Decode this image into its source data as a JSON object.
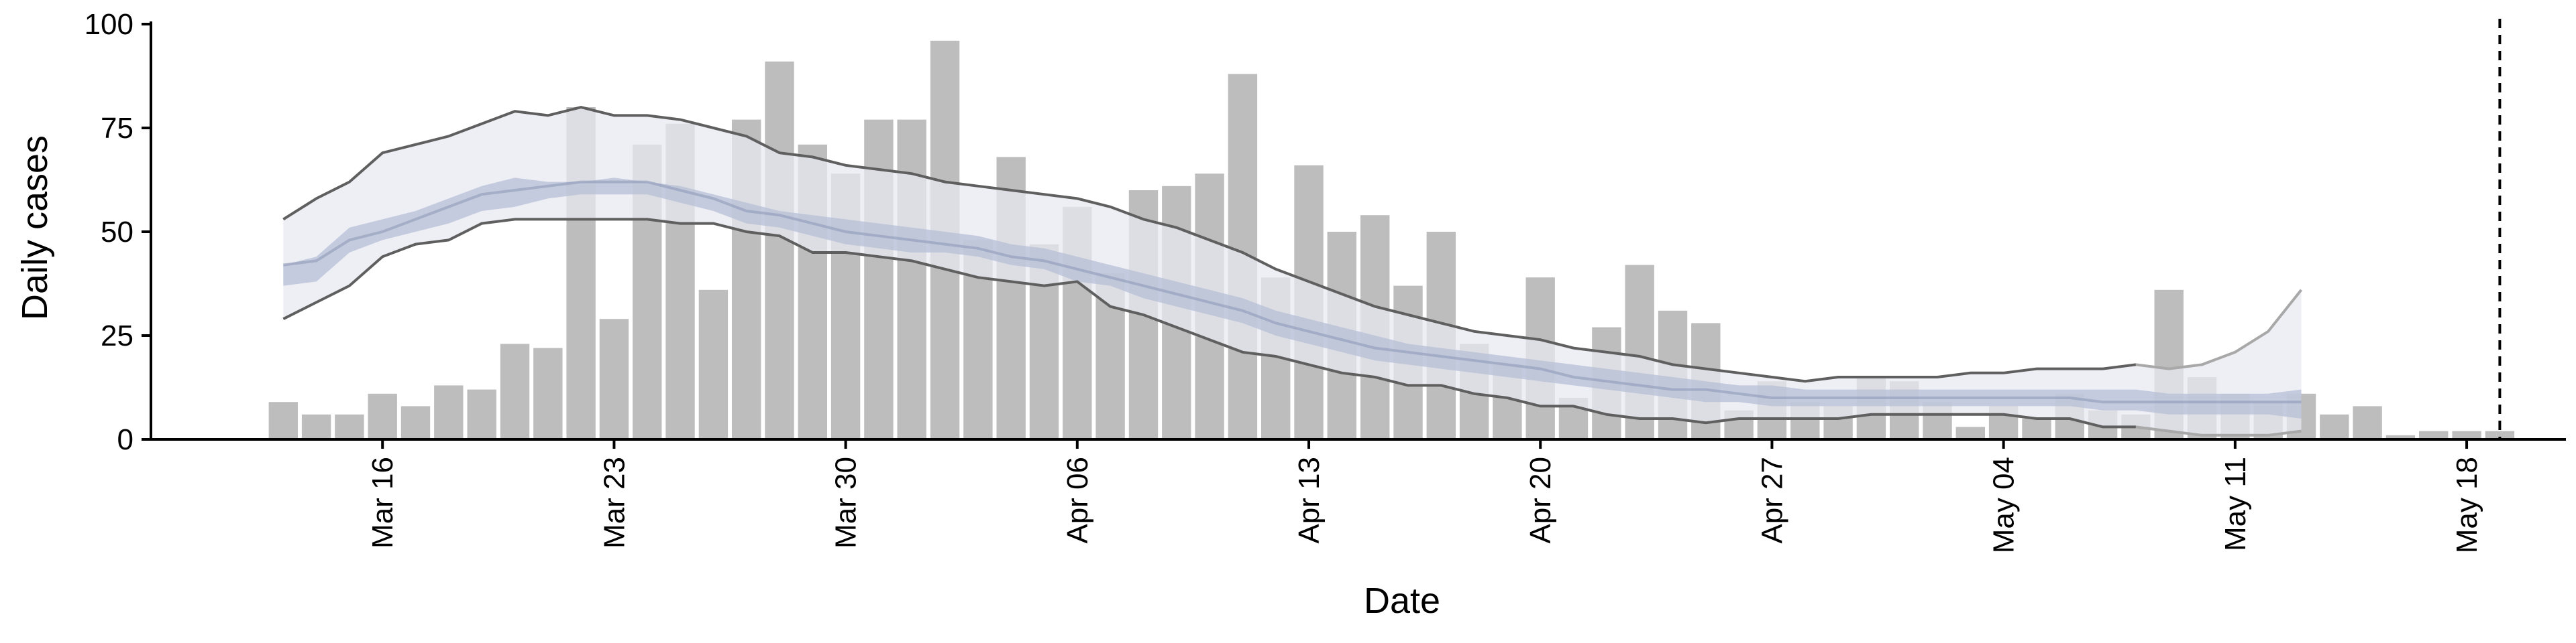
{
  "chart_data": {
    "type": "bar",
    "title": "",
    "xlabel": "Date",
    "ylabel": "Daily cases",
    "ylim": [
      0,
      100
    ],
    "yticks": [
      0,
      25,
      50,
      75,
      100
    ],
    "xlim": [
      "2020-03-09",
      "2020-05-21"
    ],
    "xticks": [
      {
        "date": "2020-03-16",
        "label": "Mar 16"
      },
      {
        "date": "2020-03-23",
        "label": "Mar 23"
      },
      {
        "date": "2020-03-30",
        "label": "Mar 30"
      },
      {
        "date": "2020-04-06",
        "label": "Apr 06"
      },
      {
        "date": "2020-04-13",
        "label": "Apr 13"
      },
      {
        "date": "2020-04-20",
        "label": "Apr 20"
      },
      {
        "date": "2020-04-27",
        "label": "Apr 27"
      },
      {
        "date": "2020-05-04",
        "label": "May 04"
      },
      {
        "date": "2020-05-11",
        "label": "May 11"
      },
      {
        "date": "2020-05-18",
        "label": "May 18"
      }
    ],
    "grid": false,
    "legend": "none",
    "colors": {
      "bars": "#bdbdbd",
      "band_outer": "#e8eaf1",
      "band_inner": "#b6bfd6",
      "median": "#97a1bd",
      "bound_line": "#5f5f5f",
      "bound_line_tail": "#a8a8a8",
      "vline": "#000000"
    },
    "bars": {
      "name": "Daily cases",
      "start_date": "2020-03-13",
      "values": [
        9,
        6,
        6,
        11,
        8,
        13,
        12,
        23,
        22,
        80,
        29,
        71,
        76,
        36,
        77,
        91,
        71,
        64,
        77,
        77,
        96,
        48,
        68,
        47,
        56,
        40,
        60,
        61,
        64,
        88,
        39,
        66,
        50,
        54,
        37,
        50,
        23,
        18,
        39,
        10,
        27,
        42,
        31,
        28,
        7,
        14,
        9,
        8,
        15,
        14,
        9,
        3,
        8,
        5,
        11,
        7,
        6,
        36,
        15,
        11,
        9,
        11,
        6,
        8,
        1,
        2,
        2,
        2
      ]
    },
    "nowcast_band": {
      "start_date": "2020-03-13",
      "outer_upper": [
        53,
        58,
        62,
        69,
        71,
        73,
        76,
        79,
        78,
        80,
        78,
        78,
        77,
        75,
        73,
        69,
        68,
        66,
        65,
        64,
        62,
        61,
        60,
        59,
        58,
        56,
        53,
        51,
        48,
        45,
        41,
        38,
        35,
        32,
        30,
        28,
        26,
        25,
        24,
        22,
        21,
        20,
        18,
        17,
        16,
        15,
        14,
        15,
        15,
        15,
        15,
        16,
        16,
        17,
        17,
        17,
        18,
        17,
        18,
        21,
        26,
        36
      ],
      "inner_upper": [
        42,
        44,
        51,
        53,
        55,
        58,
        61,
        63,
        62,
        62,
        63,
        62,
        61,
        59,
        57,
        55,
        54,
        53,
        52,
        51,
        50,
        49,
        47,
        46,
        44,
        42,
        40,
        38,
        36,
        34,
        31,
        29,
        27,
        25,
        23,
        22,
        21,
        20,
        19,
        18,
        17,
        16,
        15,
        14,
        13,
        13,
        12,
        12,
        12,
        12,
        12,
        12,
        12,
        12,
        12,
        12,
        12,
        11,
        11,
        11,
        11,
        12
      ],
      "median": [
        42,
        43,
        48,
        50,
        53,
        56,
        59,
        60,
        61,
        62,
        62,
        62,
        60,
        58,
        55,
        54,
        52,
        50,
        49,
        48,
        47,
        46,
        44,
        43,
        41,
        39,
        37,
        35,
        33,
        31,
        28,
        26,
        24,
        22,
        21,
        20,
        19,
        18,
        17,
        15,
        14,
        13,
        12,
        12,
        11,
        10,
        10,
        10,
        10,
        10,
        10,
        10,
        10,
        10,
        10,
        9,
        9,
        9,
        9,
        9,
        9,
        9
      ],
      "inner_lower": [
        37,
        38,
        45,
        48,
        50,
        52,
        55,
        56,
        58,
        59,
        59,
        59,
        57,
        55,
        52,
        51,
        49,
        47,
        46,
        45,
        45,
        44,
        42,
        41,
        38,
        37,
        34,
        32,
        30,
        28,
        25,
        23,
        21,
        19,
        18,
        17,
        16,
        15,
        14,
        13,
        12,
        11,
        10,
        9,
        9,
        8,
        8,
        8,
        8,
        8,
        8,
        8,
        8,
        8,
        8,
        7,
        7,
        6,
        6,
        6,
        6,
        5
      ],
      "outer_lower": [
        29,
        33,
        37,
        44,
        47,
        48,
        52,
        53,
        53,
        53,
        53,
        53,
        52,
        52,
        50,
        49,
        45,
        45,
        44,
        43,
        41,
        39,
        38,
        37,
        38,
        32,
        30,
        27,
        24,
        21,
        20,
        18,
        16,
        15,
        13,
        13,
        11,
        10,
        8,
        8,
        6,
        5,
        5,
        4,
        5,
        5,
        5,
        5,
        6,
        6,
        6,
        6,
        6,
        5,
        5,
        3,
        3,
        2,
        1,
        1,
        1,
        2
      ]
    },
    "vline": {
      "date": "2020-05-19",
      "style": "dashed"
    }
  }
}
